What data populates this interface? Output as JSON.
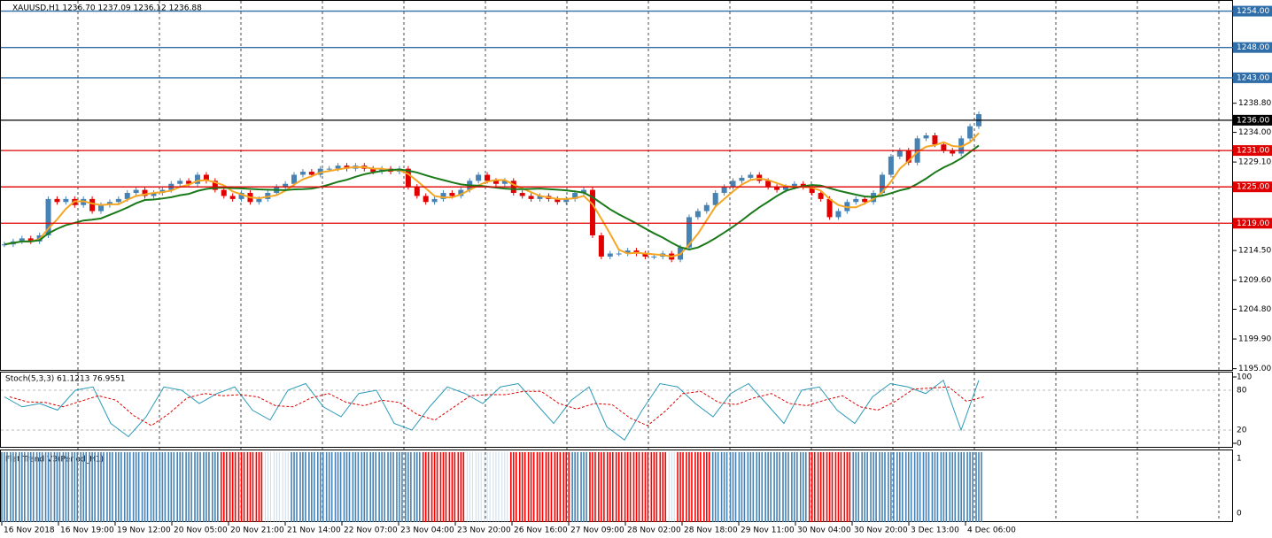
{
  "header": "XAUUSD,H1  1236.70 1237.09 1236.12 1236.88",
  "price": {
    "ylim": [
      1194.8,
      1255.4
    ],
    "ticks": [
      {
        "value": 1238.8,
        "label": "1238.80"
      },
      {
        "value": 1234,
        "label": "1234.00"
      },
      {
        "value": 1229.1,
        "label": "1229.10"
      },
      {
        "value": 1214.5,
        "label": "1214.50"
      },
      {
        "value": 1209.6,
        "label": "1209.60"
      },
      {
        "value": 1204.8,
        "label": "1204.80"
      },
      {
        "value": 1199.9,
        "label": "1199.90"
      },
      {
        "value": 1195,
        "label": "1195.00"
      }
    ],
    "levels": [
      {
        "value": 1254,
        "label": "1254.00",
        "color": "#2f6ea8"
      },
      {
        "value": 1248,
        "label": "1248.00",
        "color": "#2f6ea8"
      },
      {
        "value": 1243,
        "label": "1243.00",
        "color": "#2f6ea8"
      },
      {
        "value": 1236,
        "label": "1236.00",
        "color": "#000000"
      },
      {
        "value": 1231,
        "label": "1231.00",
        "color": "#e00000"
      },
      {
        "value": 1225,
        "label": "1225.00",
        "color": "#e00000"
      },
      {
        "value": 1219,
        "label": "1219.00",
        "color": "#e00000"
      }
    ],
    "closes": [
      1215.5,
      1216,
      1216.5,
      1216,
      1217,
      1223,
      1222.5,
      1223,
      1222,
      1223,
      1221,
      1222,
      1222.5,
      1223,
      1224,
      1224.5,
      1223.5,
      1224,
      1224.5,
      1225.5,
      1226,
      1225.5,
      1227,
      1226,
      1224.5,
      1223.5,
      1223,
      1224,
      1222.5,
      1223,
      1224,
      1225,
      1225.5,
      1227,
      1227.5,
      1227,
      1228,
      1228,
      1228.5,
      1228,
      1228.5,
      1228,
      1227.5,
      1228,
      1227.5,
      1228,
      1225,
      1223.5,
      1222.5,
      1223,
      1224,
      1223.5,
      1224.5,
      1226,
      1227,
      1226,
      1225.5,
      1226,
      1224,
      1223.5,
      1223,
      1223.5,
      1223,
      1222.5,
      1223,
      1224,
      1224.5,
      1217,
      1213.5,
      1214,
      1214,
      1214.5,
      1214,
      1213.5,
      1213.5,
      1214,
      1213,
      1215,
      1220,
      1221,
      1222,
      1224,
      1225,
      1226,
      1226.5,
      1227,
      1226,
      1225,
      1224.5,
      1225,
      1225.5,
      1225,
      1224,
      1223,
      1220,
      1221,
      1222.5,
      1223,
      1222.5,
      1224,
      1227,
      1230,
      1231,
      1229,
      1233,
      1233.5,
      1232,
      1231,
      1230.5,
      1233,
      1235,
      1237
    ]
  },
  "stoch": {
    "label": "Stoch(5,3,3) 61.1213 76.9551",
    "ylim": [
      0,
      100
    ],
    "ticks": [
      100,
      80,
      20,
      0
    ],
    "values": [
      70,
      55,
      60,
      50,
      80,
      85,
      30,
      10,
      40,
      85,
      80,
      60,
      75,
      85,
      50,
      35,
      80,
      90,
      55,
      40,
      75,
      80,
      30,
      20,
      55,
      85,
      75,
      60,
      85,
      90,
      60,
      30,
      65,
      85,
      25,
      5,
      50,
      90,
      85,
      60,
      40,
      75,
      90,
      60,
      30,
      80,
      85,
      50,
      30,
      70,
      90,
      85,
      75,
      95,
      20,
      95
    ]
  },
  "flat": {
    "label": "Flat Trend V3(Period_H1)",
    "ticks": [
      1,
      0
    ],
    "segments": [
      {
        "color": "#4682b4",
        "count": 25
      },
      {
        "color": "#ff0000",
        "count": 5
      },
      {
        "color": "#ffffff",
        "count": 3
      },
      {
        "color": "#4682b4",
        "count": 15
      },
      {
        "color": "#ff0000",
        "count": 5
      },
      {
        "color": "#ffffff",
        "count": 5
      },
      {
        "color": "#ff0000",
        "count": 7
      },
      {
        "color": "#4682b4",
        "count": 2
      },
      {
        "color": "#ff0000",
        "count": 9
      },
      {
        "color": "#ffffff",
        "count": 1
      },
      {
        "color": "#ff0000",
        "count": 4
      },
      {
        "color": "#4682b4",
        "count": 11
      },
      {
        "color": "#ff0000",
        "count": 5
      },
      {
        "color": "#4682b4",
        "count": 15
      }
    ]
  },
  "time_labels": [
    "16 Nov 2018",
    "16 Nov 19:00",
    "19 Nov 12:00",
    "20 Nov 05:00",
    "20 Nov 21:00",
    "21 Nov 14:00",
    "22 Nov 07:00",
    "23 Nov 04:00",
    "23 Nov 20:00",
    "26 Nov 16:00",
    "27 Nov 09:00",
    "28 Nov 02:00",
    "28 Nov 18:00",
    "29 Nov 11:00",
    "30 Nov 04:00",
    "30 Nov 20:00",
    "3 Dec 13:00",
    "4 Dec 06:00"
  ]
}
